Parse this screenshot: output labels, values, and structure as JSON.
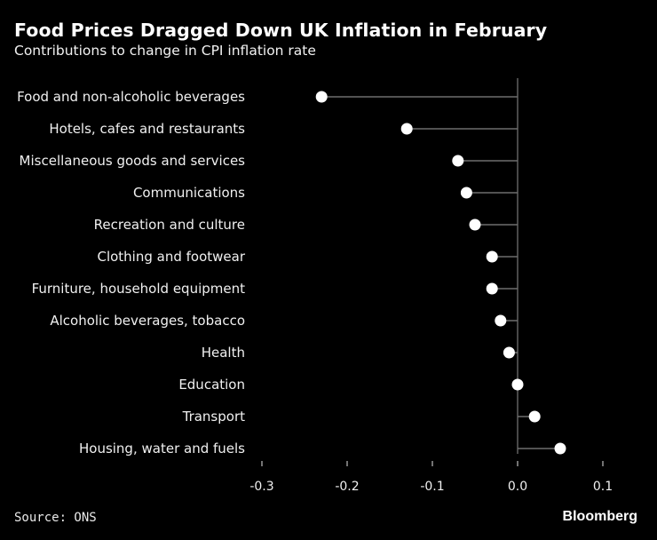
{
  "chart_data": {
    "type": "dot",
    "title": "Food Prices Dragged Down UK Inflation in February",
    "subtitle": "Contributions to change in CPI inflation rate",
    "xlim": [
      -0.3,
      0.1
    ],
    "xticks": [
      -0.3,
      -0.2,
      -0.1,
      0.0,
      0.1
    ],
    "xtick_labels": [
      "-0.3",
      "-0.2",
      "-0.1",
      "0.0",
      "0.1"
    ],
    "categories": [
      "Food and non-alcoholic beverages",
      "Hotels, cafes and restaurants",
      "Miscellaneous goods and services",
      "Communications",
      "Recreation and culture",
      "Clothing and footwear",
      "Furniture, household equipment",
      "Alcoholic beverages, tobacco",
      "Health",
      "Education",
      "Transport",
      "Housing, water and fuels"
    ],
    "values": [
      -0.23,
      -0.13,
      -0.07,
      -0.06,
      -0.05,
      -0.03,
      -0.03,
      -0.02,
      -0.01,
      0.0,
      0.02,
      0.05
    ],
    "colors": {
      "background": "#000000",
      "dot": "#ffffff",
      "line": "#6e6e6e",
      "text": "#ffffff"
    }
  },
  "footer": {
    "source": "Source: ONS",
    "brand": "Bloomberg"
  }
}
